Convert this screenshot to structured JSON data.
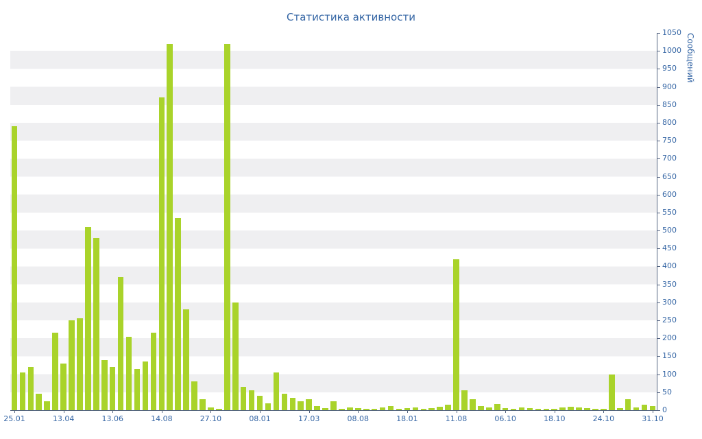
{
  "title": "Статистика активности",
  "colors": {
    "bar": "#a9d32a",
    "stripe": "#efeff1",
    "axis": "#51617f",
    "text": "#3465a4",
    "background": "#ffffff"
  },
  "chart_data": {
    "type": "bar",
    "title": "Статистика активности",
    "xlabel": "",
    "ylabel": "Сообщений",
    "ylim": [
      0,
      1050
    ],
    "y_tick_step": 50,
    "grid": "striped-horizontal-rows",
    "legend": false,
    "label_every": 6,
    "x_tick_labels": [
      "25.01",
      "13.04",
      "13.06",
      "14.08",
      "27.10",
      "08.01",
      "17.03",
      "08.08",
      "18.01",
      "11.08",
      "06.10",
      "18.10",
      "24.10",
      "31.10"
    ],
    "values": [
      790,
      105,
      120,
      45,
      25,
      215,
      130,
      250,
      255,
      510,
      480,
      140,
      120,
      370,
      205,
      115,
      135,
      215,
      870,
      1020,
      535,
      280,
      80,
      30,
      8,
      3,
      1020,
      300,
      65,
      55,
      40,
      20,
      105,
      45,
      35,
      25,
      30,
      12,
      5,
      25,
      4,
      8,
      5,
      4,
      3,
      8,
      12,
      4,
      5,
      8,
      4,
      6,
      10,
      15,
      420,
      55,
      30,
      12,
      8,
      18,
      6,
      4,
      8,
      5,
      4,
      3,
      4,
      8,
      10,
      8,
      5,
      4,
      3,
      100,
      5,
      30,
      8,
      15,
      12
    ]
  }
}
